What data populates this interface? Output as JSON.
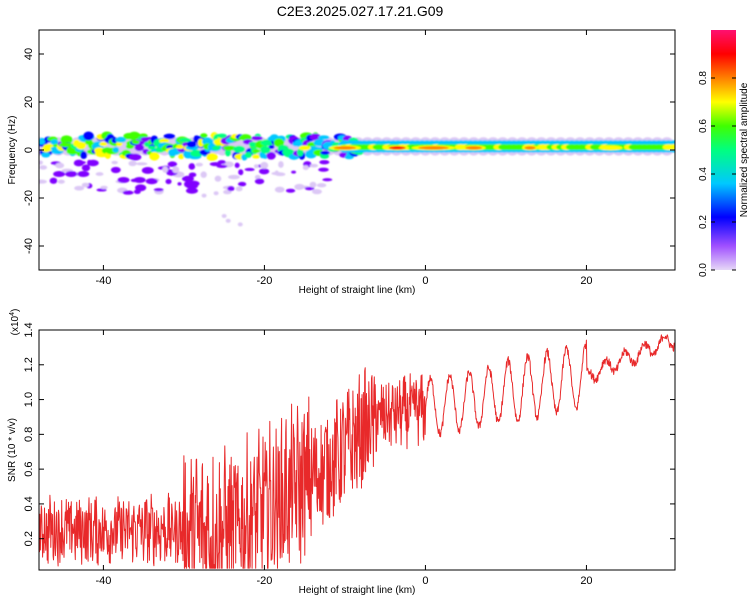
{
  "title": "C2E3.2025.027.17.21.G09",
  "chart_data": [
    {
      "type": "heatmap",
      "xlabel": "Height of straight line (km)",
      "ylabel": "Frequency (Hz)",
      "xlim": [
        -48,
        31
      ],
      "ylim": [
        -50,
        50
      ],
      "xticks": [
        -40,
        -20,
        0,
        20
      ],
      "xtick_labels": [
        "-40",
        "-20",
        "0",
        "20"
      ],
      "yticks": [
        -40,
        -20,
        0,
        20,
        40
      ],
      "ytick_labels": [
        "-40",
        "-20",
        "0",
        "20",
        "40"
      ],
      "colorbar": {
        "label": "Normalized spectral amplitude",
        "range": [
          0,
          1
        ],
        "ticks": [
          0.0,
          0.2,
          0.4,
          0.6,
          0.8
        ],
        "tick_labels": [
          "0.0",
          "0.2",
          "0.4",
          "0.6",
          "0.8"
        ],
        "colors": [
          "#dcc8f5",
          "#8000ff",
          "#0000ff",
          "#00c8ff",
          "#00ff80",
          "#40ff00",
          "#ffff00",
          "#ff8000",
          "#ff0000",
          "#ff00c8"
        ]
      },
      "band_center_hz": 1.5,
      "band_halfwidth_hz": 3
    },
    {
      "type": "line",
      "xlabel": "Height of straight line (km)",
      "ylabel": "SNR (10 * v/v)",
      "y_scale_label": "(x10",
      "y_scale_exp": "4",
      "y_scale_close": ")",
      "xlim": [
        -48,
        31
      ],
      "ylim": [
        0.02,
        1.4
      ],
      "xticks": [
        -40,
        -20,
        0,
        20
      ],
      "xtick_labels": [
        "-40",
        "-20",
        "0",
        "20"
      ],
      "yticks": [
        0.2,
        0.4,
        0.6,
        0.8,
        1.0,
        1.2,
        1.4
      ],
      "ytick_labels": [
        "0.2",
        "0.4",
        "0.6",
        "0.8",
        "1.0",
        "1.2",
        "1.4"
      ],
      "color": "#e8292a",
      "trend": [
        [
          -48,
          0.25
        ],
        [
          -24,
          0.25
        ],
        [
          -12,
          0.62
        ],
        [
          -6,
          0.9
        ],
        [
          6,
          1.0
        ],
        [
          20,
          1.14
        ],
        [
          31,
          1.35
        ]
      ]
    }
  ]
}
